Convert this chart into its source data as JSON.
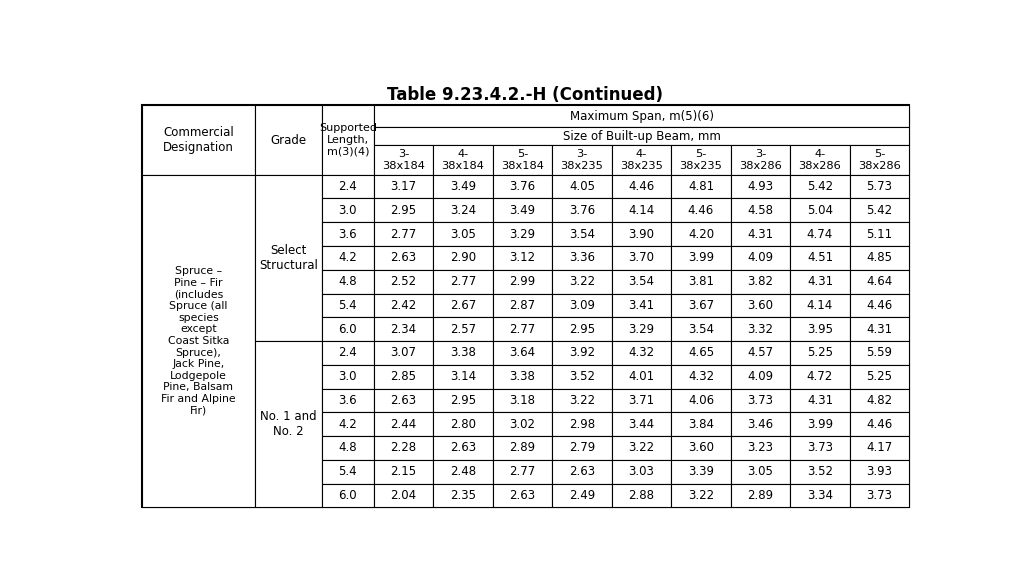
{
  "title": "Table 9.23.4.2.-H (Continued)",
  "col_headers": [
    "3-\n38x184",
    "4-\n38x184",
    "5-\n38x184",
    "3-\n38x235",
    "4-\n38x235",
    "5-\n38x235",
    "3-\n38x286",
    "4-\n38x286",
    "5-\n38x286"
  ],
  "designation_text": "Spruce –\nPine – Fir\n(includes\nSpruce (all\nspecies\nexcept\nCoast Sitka\nSpruce),\nJack Pine,\nLodgepole\nPine, Balsam\nFir and Alpine\nFir)",
  "sections": [
    {
      "grade": "Select\nStructural",
      "rows": [
        {
          "length": "2.4",
          "values": [
            "3.17",
            "3.49",
            "3.76",
            "4.05",
            "4.46",
            "4.81",
            "4.93",
            "5.42",
            "5.73"
          ]
        },
        {
          "length": "3.0",
          "values": [
            "2.95",
            "3.24",
            "3.49",
            "3.76",
            "4.14",
            "4.46",
            "4.58",
            "5.04",
            "5.42"
          ]
        },
        {
          "length": "3.6",
          "values": [
            "2.77",
            "3.05",
            "3.29",
            "3.54",
            "3.90",
            "4.20",
            "4.31",
            "4.74",
            "5.11"
          ]
        },
        {
          "length": "4.2",
          "values": [
            "2.63",
            "2.90",
            "3.12",
            "3.36",
            "3.70",
            "3.99",
            "4.09",
            "4.51",
            "4.85"
          ]
        },
        {
          "length": "4.8",
          "values": [
            "2.52",
            "2.77",
            "2.99",
            "3.22",
            "3.54",
            "3.81",
            "3.82",
            "4.31",
            "4.64"
          ]
        },
        {
          "length": "5.4",
          "values": [
            "2.42",
            "2.67",
            "2.87",
            "3.09",
            "3.41",
            "3.67",
            "3.60",
            "4.14",
            "4.46"
          ]
        },
        {
          "length": "6.0",
          "values": [
            "2.34",
            "2.57",
            "2.77",
            "2.95",
            "3.29",
            "3.54",
            "3.32",
            "3.95",
            "4.31"
          ]
        }
      ]
    },
    {
      "grade": "No. 1 and\nNo. 2",
      "rows": [
        {
          "length": "2.4",
          "values": [
            "3.07",
            "3.38",
            "3.64",
            "3.92",
            "4.32",
            "4.65",
            "4.57",
            "5.25",
            "5.59"
          ]
        },
        {
          "length": "3.0",
          "values": [
            "2.85",
            "3.14",
            "3.38",
            "3.52",
            "4.01",
            "4.32",
            "4.09",
            "4.72",
            "5.25"
          ]
        },
        {
          "length": "3.6",
          "values": [
            "2.63",
            "2.95",
            "3.18",
            "3.22",
            "3.71",
            "4.06",
            "3.73",
            "4.31",
            "4.82"
          ]
        },
        {
          "length": "4.2",
          "values": [
            "2.44",
            "2.80",
            "3.02",
            "2.98",
            "3.44",
            "3.84",
            "3.46",
            "3.99",
            "4.46"
          ]
        },
        {
          "length": "4.8",
          "values": [
            "2.28",
            "2.63",
            "2.89",
            "2.79",
            "3.22",
            "3.60",
            "3.23",
            "3.73",
            "4.17"
          ]
        },
        {
          "length": "5.4",
          "values": [
            "2.15",
            "2.48",
            "2.77",
            "2.63",
            "3.03",
            "3.39",
            "3.05",
            "3.52",
            "3.93"
          ]
        },
        {
          "length": "6.0",
          "values": [
            "2.04",
            "2.35",
            "2.63",
            "2.49",
            "2.88",
            "3.22",
            "2.89",
            "3.34",
            "3.73"
          ]
        }
      ]
    }
  ],
  "bg_color": "#ffffff"
}
